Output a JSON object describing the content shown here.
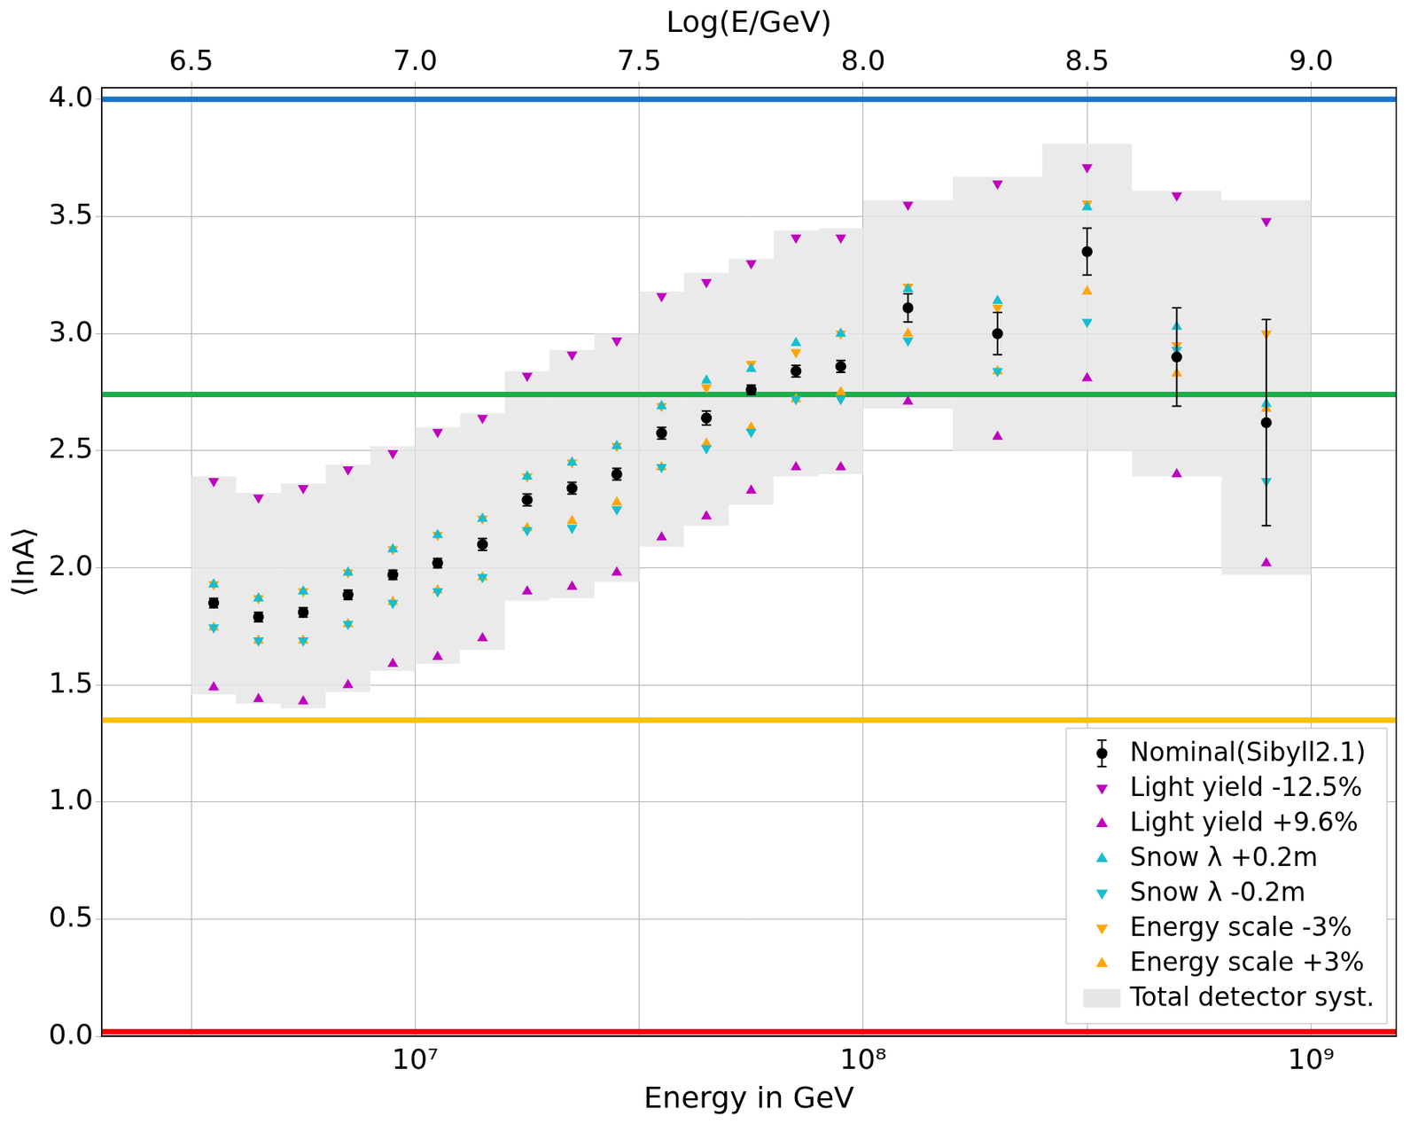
{
  "chart_data": {
    "type": "scatter",
    "xlabel": "Energy in GeV",
    "ylabel": "⟨lnA⟩",
    "x2label": "Log(E/GeV)",
    "log": "x",
    "grid": true,
    "legend": "lower right",
    "xlim": [
      1995000,
      1549000000
    ],
    "xticks": [
      {
        "value": 10000000,
        "label": "10⁷"
      },
      {
        "value": 100000000,
        "label": "10⁸"
      },
      {
        "value": 1000000000,
        "label": "10⁹"
      }
    ],
    "x2lim": [
      6.3,
      9.19
    ],
    "x2ticks": [
      6.5,
      {
        "value": 7,
        "label": "7.0"
      },
      7.5,
      {
        "value": 8,
        "label": "8.0"
      },
      8.5,
      {
        "value": 9,
        "label": "9.0"
      }
    ],
    "ylim": [
      0,
      4.05
    ],
    "yticks": [
      {
        "value": 0,
        "label": "0.0"
      },
      0.5,
      {
        "value": 1,
        "label": "1.0"
      },
      1.5,
      {
        "value": 2,
        "label": "2.0"
      },
      2.5,
      {
        "value": 3,
        "label": "3.0"
      },
      3.5,
      {
        "value": 4,
        "label": "4.0"
      }
    ],
    "x": [
      3548000,
      4467000,
      5623000,
      7079000,
      8913000,
      11220000,
      14130000,
      17780000,
      22390000,
      28180000,
      35480000,
      44670000,
      56230000,
      70790000,
      89130000,
      125900000,
      199500000,
      316200000,
      501200000,
      794300000
    ],
    "series": [
      {
        "name": "Nominal(Sibyll2.1)",
        "color": "#000000",
        "marker": "circle",
        "values": [
          1.85,
          1.79,
          1.81,
          1.885,
          1.97,
          2.02,
          2.1,
          2.29,
          2.34,
          2.4,
          2.575,
          2.64,
          2.76,
          2.84,
          2.86,
          3.11,
          3.0,
          3.35,
          2.9,
          2.62
        ],
        "errors": [
          0.02,
          0.02,
          0.02,
          0.02,
          0.02,
          0.02,
          0.025,
          0.025,
          0.025,
          0.025,
          0.025,
          0.03,
          0.02,
          0.025,
          0.025,
          0.06,
          0.09,
          0.1,
          0.21,
          0.44
        ]
      },
      {
        "name": "Light yield -12.5%",
        "color": "#bf00bf",
        "marker": "triangle_down",
        "values": [
          2.37,
          2.3,
          2.34,
          2.42,
          2.49,
          2.58,
          2.64,
          2.82,
          2.91,
          2.97,
          3.16,
          3.22,
          3.3,
          3.41,
          3.41,
          3.55,
          3.64,
          3.71,
          3.59,
          3.48
        ]
      },
      {
        "name": "Light yield +9.6%",
        "color": "#bf00bf",
        "marker": "triangle_up",
        "values": [
          1.49,
          1.44,
          1.43,
          1.5,
          1.59,
          1.62,
          1.7,
          1.9,
          1.92,
          1.98,
          2.13,
          2.22,
          2.33,
          2.43,
          2.43,
          2.71,
          2.56,
          2.81,
          2.4,
          2.02
        ]
      },
      {
        "name": "Snow λ +0.2m",
        "color": "#17becf",
        "marker": "triangle_up",
        "values": [
          1.93,
          1.87,
          1.9,
          1.98,
          2.08,
          2.14,
          2.21,
          2.39,
          2.45,
          2.52,
          2.69,
          2.8,
          2.85,
          2.96,
          3.0,
          3.19,
          3.14,
          3.54,
          3.03,
          2.7
        ]
      },
      {
        "name": "Snow λ -0.2m",
        "color": "#17becf",
        "marker": "triangle_down",
        "values": [
          1.745,
          1.69,
          1.69,
          1.76,
          1.85,
          1.9,
          1.96,
          2.16,
          2.17,
          2.25,
          2.43,
          2.51,
          2.58,
          2.72,
          2.72,
          2.97,
          2.84,
          3.05,
          2.93,
          2.37
        ]
      },
      {
        "name": "Energy scale -3%",
        "color": "#ffa500",
        "marker": "triangle_down",
        "values": [
          1.93,
          1.87,
          1.9,
          1.98,
          2.08,
          2.14,
          2.21,
          2.39,
          2.45,
          2.52,
          2.69,
          2.77,
          2.87,
          2.92,
          3.0,
          3.2,
          3.11,
          3.555,
          2.95,
          3.0
        ]
      },
      {
        "name": "Energy scale +3%",
        "color": "#ffa500",
        "marker": "triangle_up",
        "values": [
          1.745,
          1.69,
          1.69,
          1.76,
          1.855,
          1.905,
          1.96,
          2.17,
          2.2,
          2.28,
          2.43,
          2.53,
          2.6,
          2.72,
          2.75,
          3.0,
          2.84,
          3.18,
          2.83,
          2.68
        ]
      },
      {
        "name": "Total detector syst.",
        "color": "#e6e6e6",
        "marker": "box",
        "bins": [
          3162000,
          3981000,
          5012000,
          6310000,
          7943000,
          10000000,
          12590000,
          15850000,
          19950000,
          25120000,
          31620000,
          39810000,
          50120000,
          63100000,
          79430000,
          100000000,
          158500000,
          251200000,
          398100000,
          631000000,
          1000000000
        ],
        "low": [
          1.46,
          1.42,
          1.4,
          1.47,
          1.56,
          1.59,
          1.65,
          1.86,
          1.87,
          1.94,
          2.09,
          2.18,
          2.27,
          2.39,
          2.4,
          2.68,
          2.5,
          2.5,
          2.39,
          1.97
        ],
        "high": [
          2.39,
          2.32,
          2.36,
          2.44,
          2.52,
          2.6,
          2.66,
          2.84,
          2.93,
          3.0,
          3.18,
          3.26,
          3.32,
          3.44,
          3.45,
          3.57,
          3.67,
          3.81,
          3.61,
          3.57
        ]
      }
    ],
    "reference_lines": [
      {
        "value": 4.0,
        "color": "#1874cd"
      },
      {
        "value": 2.74,
        "color": "#1aaf4b"
      },
      {
        "value": 1.35,
        "color": "#ffc107"
      },
      {
        "value": 0.02,
        "color": "#ff0000"
      }
    ]
  }
}
